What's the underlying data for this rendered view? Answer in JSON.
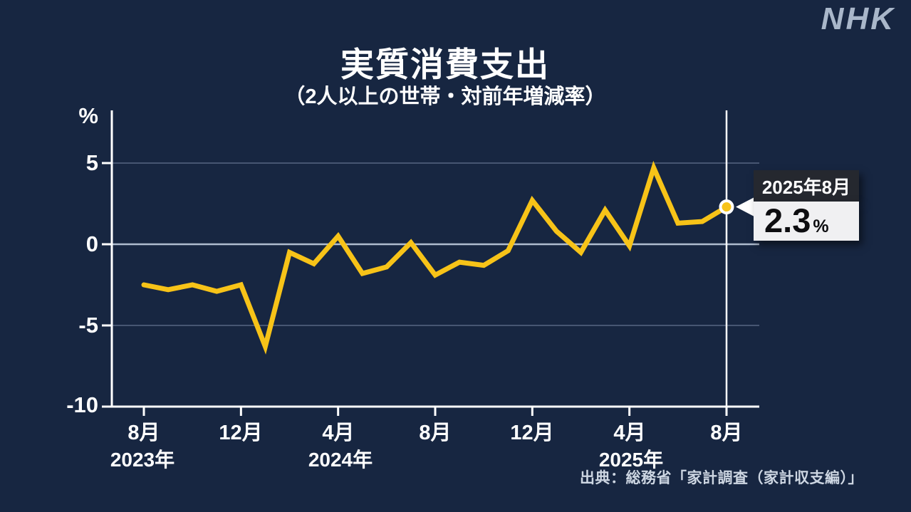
{
  "brand": "NHK",
  "header": {
    "title": "実質消費支出",
    "subtitle": "（2人以上の世帯・対前年増減率）"
  },
  "chart_data": {
    "type": "line",
    "title": "実質消費支出",
    "subtitle": "（2人以上の世帯・対前年増減率）",
    "unit": "%",
    "x": [
      "2023-08",
      "2023-09",
      "2023-10",
      "2023-11",
      "2023-12",
      "2024-01",
      "2024-02",
      "2024-03",
      "2024-04",
      "2024-05",
      "2024-06",
      "2024-07",
      "2024-08",
      "2024-09",
      "2024-10",
      "2024-11",
      "2024-12",
      "2025-01",
      "2025-02",
      "2025-03",
      "2025-04",
      "2025-05",
      "2025-06",
      "2025-07",
      "2025-08"
    ],
    "values": [
      -2.5,
      -2.8,
      -2.5,
      -2.9,
      -2.5,
      -6.3,
      -0.5,
      -1.2,
      0.5,
      -1.8,
      -1.4,
      0.1,
      -1.9,
      -1.1,
      -1.3,
      -0.4,
      2.7,
      0.8,
      -0.5,
      2.1,
      -0.1,
      4.7,
      1.3,
      1.4,
      2.3
    ],
    "ylim": [
      -10,
      8
    ],
    "grid": "horizontal",
    "legend": "none",
    "line_color": "#f7c318",
    "yticks": {
      "values": [
        5,
        0,
        -5,
        -10
      ],
      "labels": [
        "5",
        "0",
        "-5",
        "-10"
      ],
      "axis_unit": "%"
    },
    "xticks": {
      "indices": [
        0,
        4,
        8,
        12,
        16,
        20,
        24
      ],
      "labels": [
        "8月",
        "12月",
        "4月",
        "8月",
        "12月",
        "4月",
        "8月"
      ]
    },
    "years": {
      "labels": [
        "2023年",
        "2024年",
        "2025年"
      ],
      "indices": [
        0,
        8,
        20
      ]
    },
    "highlight": {
      "index": 24,
      "date_label": "2025年8月",
      "value": 2.3,
      "value_label": "2.3",
      "unit": "%"
    }
  },
  "callout": {
    "date": "2025年8月",
    "value": "2.3",
    "unit": "%"
  },
  "footer": {
    "source": "出典：総務省「家計調査（家計収支編）」"
  },
  "colors": {
    "background": "#172641",
    "line": "#f7c318",
    "marker_fill": "#f7c318",
    "marker_ring": "#ffffff",
    "axis": "#ffffff",
    "zero_line": "#d6e2f2",
    "grid_line": "#a0b2cd",
    "brand": "#a9b7ca",
    "callout_date_bg": "#25282f",
    "callout_value_bg": "#f0f0f2"
  }
}
